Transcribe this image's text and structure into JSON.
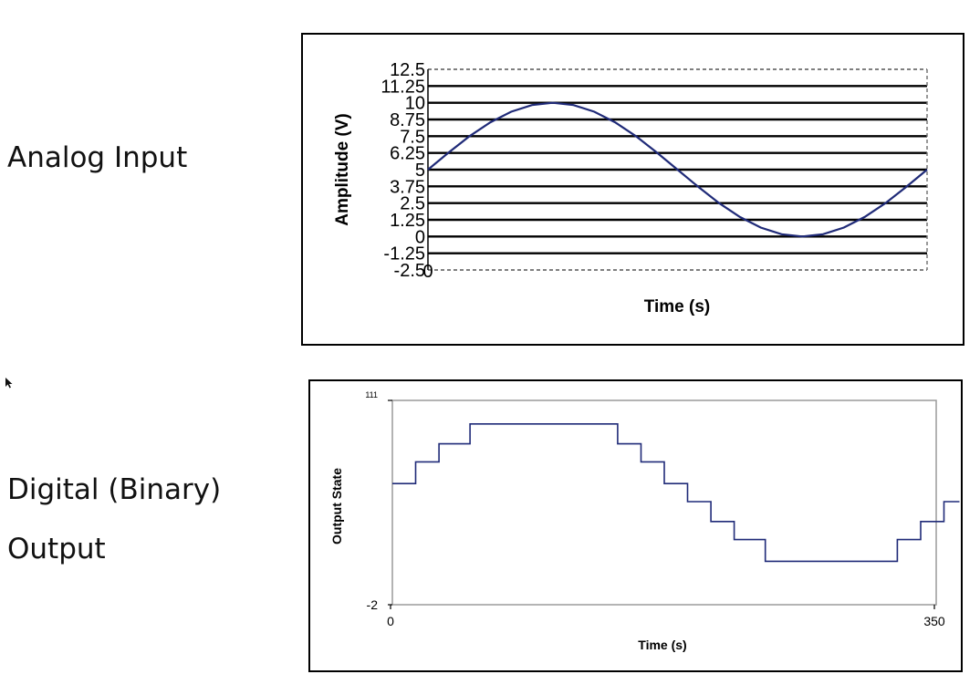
{
  "labels": {
    "analog": "Analog Input",
    "digital_line1": "Digital (Binary)",
    "digital_line2": "Output"
  },
  "chart_data": [
    {
      "type": "line",
      "title": "",
      "xlabel": "Time (s)",
      "ylabel": "Amplitude (V)",
      "ylim": [
        -2.5,
        12.5
      ],
      "yticks": [
        "12.5",
        "11.25",
        "10",
        "8.75",
        "7.5",
        "6.25",
        "5",
        "3.75",
        "2.5",
        "1.25",
        "0",
        "-1.25",
        "-2.5"
      ],
      "xticks": [
        "0"
      ],
      "xlim": [
        0,
        360
      ],
      "grid": true,
      "legend": "none",
      "color": "#1f2a78",
      "series": [
        {
          "x": [
            0,
            15,
            30,
            45,
            60,
            75,
            90,
            105,
            120,
            135,
            150,
            165,
            180,
            195,
            210,
            225,
            240,
            255,
            270,
            285,
            300,
            315,
            330,
            345,
            360
          ],
          "values": [
            5,
            6.29,
            7.5,
            8.54,
            9.33,
            9.83,
            10,
            9.83,
            9.33,
            8.54,
            7.5,
            6.29,
            5,
            3.71,
            2.5,
            1.46,
            0.67,
            0.17,
            0,
            0.17,
            0.67,
            1.46,
            2.5,
            3.71,
            5
          ]
        }
      ]
    },
    {
      "type": "line",
      "title": "",
      "xlabel": "Time (s)",
      "ylabel": "Output State",
      "ylim": [
        -2,
        111
      ],
      "yticks": [
        "111",
        "-2"
      ],
      "xticks": [
        "0",
        "350"
      ],
      "xlim": [
        0,
        350
      ],
      "step": true,
      "legend": "none",
      "color": "#1f2a78",
      "series": [
        {
          "x": [
            0,
            15,
            30,
            50,
            130,
            145,
            160,
            175,
            190,
            205,
            220,
            240,
            325,
            340,
            355,
            365
          ],
          "values": [
            65,
            77,
            87,
            98,
            98,
            87,
            77,
            65,
            55,
            44,
            34,
            22,
            34,
            44,
            55,
            55
          ]
        }
      ]
    }
  ]
}
